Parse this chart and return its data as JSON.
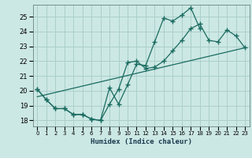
{
  "xlabel": "Humidex (Indice chaleur)",
  "background_color": "#cce8e4",
  "grid_color": "#aacfcb",
  "line_color": "#1a6b60",
  "xlim": [
    -0.5,
    23.5
  ],
  "ylim": [
    17.6,
    25.8
  ],
  "yticks": [
    18,
    19,
    20,
    21,
    22,
    23,
    24,
    25
  ],
  "xticks": [
    0,
    1,
    2,
    3,
    4,
    5,
    6,
    7,
    8,
    9,
    10,
    11,
    12,
    13,
    14,
    15,
    16,
    17,
    18,
    19,
    20,
    21,
    22,
    23
  ],
  "line1_x": [
    0,
    1,
    2,
    3,
    4,
    5,
    6,
    7,
    8,
    9,
    10,
    11,
    12,
    13,
    14,
    15,
    16,
    17,
    18
  ],
  "line1_y": [
    20.1,
    19.4,
    18.8,
    18.8,
    18.4,
    18.4,
    18.1,
    18.0,
    20.2,
    19.1,
    20.4,
    21.8,
    21.7,
    23.3,
    24.9,
    24.7,
    25.1,
    25.6,
    24.2
  ],
  "line2_x": [
    0,
    1,
    2,
    3,
    4,
    5,
    6,
    7,
    8,
    9,
    10,
    11,
    12,
    13,
    14,
    15,
    16,
    17,
    18,
    19,
    20,
    21,
    22,
    23
  ],
  "line2_y": [
    20.1,
    19.4,
    18.8,
    18.8,
    18.4,
    18.4,
    18.1,
    18.0,
    19.1,
    20.1,
    21.9,
    22.0,
    21.5,
    21.6,
    22.0,
    22.7,
    23.4,
    24.2,
    24.5,
    23.4,
    23.3,
    24.1,
    23.7,
    22.9
  ],
  "line3_x": [
    0,
    23
  ],
  "line3_y": [
    19.6,
    22.9
  ]
}
